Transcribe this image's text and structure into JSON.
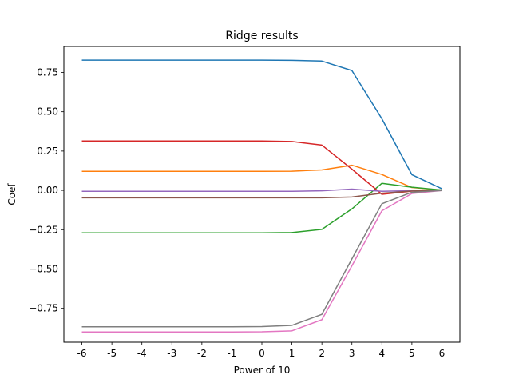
{
  "chart_data": {
    "type": "line",
    "title": "Ridge results",
    "xlabel": "Power of 10",
    "ylabel": "Coef",
    "x": [
      -6,
      -5,
      -4,
      -3,
      -2,
      -1,
      0,
      1,
      2,
      3,
      4,
      5,
      6
    ],
    "xticks": [
      "-6",
      "-5",
      "-4",
      "-3",
      "-2",
      "-1",
      "0",
      "1",
      "2",
      "3",
      "4",
      "5",
      "6"
    ],
    "yticks": [
      -0.75,
      -0.5,
      -0.25,
      0.0,
      0.25,
      0.5,
      0.75
    ],
    "ytick_labels": [
      "−0.75",
      "−0.50",
      "−0.25",
      "0.00",
      "0.25",
      "0.50",
      "0.75"
    ],
    "xlim": [
      -6.6,
      6.6
    ],
    "ylim": [
      -0.965,
      0.915
    ],
    "grid": false,
    "series": [
      {
        "color": "#1f77b4",
        "values": [
          0.828,
          0.828,
          0.828,
          0.828,
          0.828,
          0.828,
          0.828,
          0.827,
          0.822,
          0.762,
          0.455,
          0.1,
          0.01
        ]
      },
      {
        "color": "#ff7f0e",
        "values": [
          0.121,
          0.121,
          0.121,
          0.121,
          0.121,
          0.121,
          0.121,
          0.122,
          0.13,
          0.16,
          0.101,
          0.018,
          0.002
        ]
      },
      {
        "color": "#2ca02c",
        "values": [
          -0.27,
          -0.27,
          -0.27,
          -0.27,
          -0.27,
          -0.27,
          -0.27,
          -0.268,
          -0.248,
          -0.118,
          0.045,
          0.02,
          0.002
        ]
      },
      {
        "color": "#d62728",
        "values": [
          0.314,
          0.314,
          0.314,
          0.314,
          0.314,
          0.314,
          0.314,
          0.311,
          0.288,
          0.135,
          -0.025,
          -0.005,
          0.0
        ]
      },
      {
        "color": "#9467bd",
        "values": [
          -0.006,
          -0.006,
          -0.006,
          -0.006,
          -0.006,
          -0.006,
          -0.006,
          -0.006,
          -0.003,
          0.008,
          -0.006,
          -0.002,
          0.0
        ]
      },
      {
        "color": "#8c564b",
        "values": [
          -0.047,
          -0.047,
          -0.047,
          -0.047,
          -0.047,
          -0.047,
          -0.047,
          -0.047,
          -0.047,
          -0.042,
          -0.018,
          -0.004,
          0.0
        ]
      },
      {
        "color": "#e377c2",
        "values": [
          -0.9,
          -0.9,
          -0.9,
          -0.9,
          -0.9,
          -0.9,
          -0.899,
          -0.893,
          -0.822,
          -0.48,
          -0.13,
          -0.02,
          -0.001
        ]
      },
      {
        "color": "#7f7f7f",
        "values": [
          -0.867,
          -0.867,
          -0.867,
          -0.867,
          -0.867,
          -0.867,
          -0.866,
          -0.858,
          -0.788,
          -0.436,
          -0.085,
          -0.012,
          -0.001
        ]
      }
    ]
  }
}
